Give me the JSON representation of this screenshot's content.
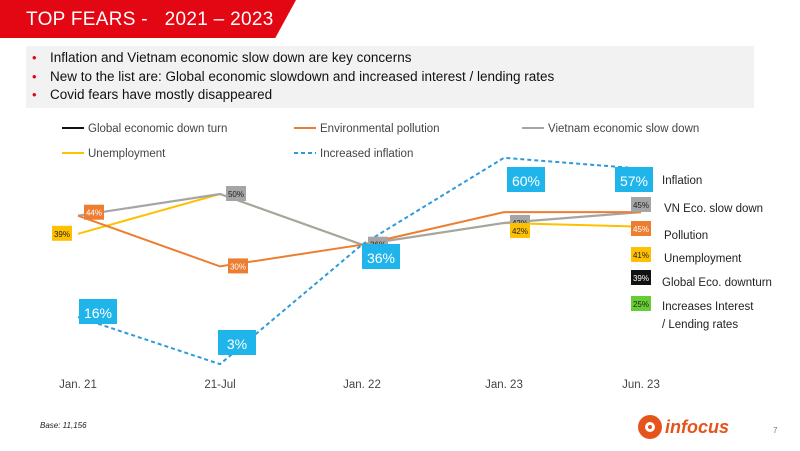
{
  "header": {
    "title": "TOP FEARS -   2021 – 2023"
  },
  "bullets": [
    "Inflation and Vietnam economic slow down are key concerns",
    "New to the list are: Global economic slowdown and increased interest / lending rates",
    "Covid fears have mostly disappeared"
  ],
  "colors": {
    "brand_red": "#e30613",
    "global": "#111111",
    "environmental": "#ed7d31",
    "vietnam": "#a5a5a5",
    "unemployment": "#ffc000",
    "inflation": "#2e9bd6",
    "inflation_label_bg": "#1fb4ea",
    "interest": "#66cc33"
  },
  "chart_data": {
    "type": "line",
    "title": "TOP FEARS -   2021 – 2023",
    "categories": [
      "Jan. 21",
      "21-Jul",
      "Jan. 22",
      "Jan. 23",
      "Jun. 23"
    ],
    "ylabel": "",
    "xlabel": "",
    "series": [
      {
        "name": "Global economic down turn",
        "values": [
          null,
          null,
          null,
          null,
          39
        ]
      },
      {
        "name": "Environmental pollution",
        "values": [
          44,
          30,
          36,
          45,
          45
        ]
      },
      {
        "name": "Vietnam economic slow down",
        "values": [
          44,
          50,
          36,
          42,
          45
        ]
      },
      {
        "name": "Unemployment",
        "values": [
          39,
          50,
          36,
          42,
          41
        ]
      },
      {
        "name": "Increased inflation",
        "values": [
          16,
          3,
          36,
          60,
          57
        ]
      },
      {
        "name": "Increases Interest / Lending rates",
        "values": [
          null,
          null,
          null,
          null,
          25
        ]
      }
    ],
    "point_labels": [
      {
        "series": "Environmental pollution",
        "index": 0,
        "text": "44%"
      },
      {
        "series": "Unemployment",
        "index": 0,
        "text": "39%"
      },
      {
        "series": "Vietnam economic slow down",
        "index": 1,
        "text": "50%"
      },
      {
        "series": "Environmental pollution",
        "index": 1,
        "text": "30%"
      },
      {
        "series": "Vietnam economic slow down",
        "index": 2,
        "text": "36%"
      },
      {
        "series": "Vietnam economic slow down",
        "index": 3,
        "text": "42%"
      },
      {
        "series": "Unemployment",
        "index": 3,
        "text": "42%"
      },
      {
        "series": "Vietnam economic slow down",
        "index": 4,
        "text": "45%"
      },
      {
        "series": "Environmental pollution",
        "index": 4,
        "text": "45%"
      },
      {
        "series": "Unemployment",
        "index": 4,
        "text": "41%"
      },
      {
        "series": "Global economic down turn",
        "index": 4,
        "text": "39%"
      },
      {
        "series": "Increases Interest / Lending rates",
        "index": 4,
        "text": "25%"
      }
    ],
    "inflation_labels": [
      "16%",
      "3%",
      "36%",
      "60%",
      "57%"
    ],
    "legend_items": [
      "Global economic down turn",
      "Environmental pollution",
      "Vietnam economic slow down",
      "Unemployment",
      "Increased inflation"
    ],
    "end_labels": {
      "inflation": "Inflation",
      "vietnam": "VN Eco. slow down",
      "pollution": "Pollution",
      "unemployment": "Unemployment",
      "global": "Global Eco. downturn",
      "interest_line1": "Increases Interest",
      "interest_line2": "/ Lending rates"
    },
    "ylim": [
      0,
      65
    ],
    "grid": false,
    "legend_position": "top"
  },
  "footer": {
    "base": "Base: 11,156",
    "logo_text": "infocus",
    "page_number": "7"
  }
}
